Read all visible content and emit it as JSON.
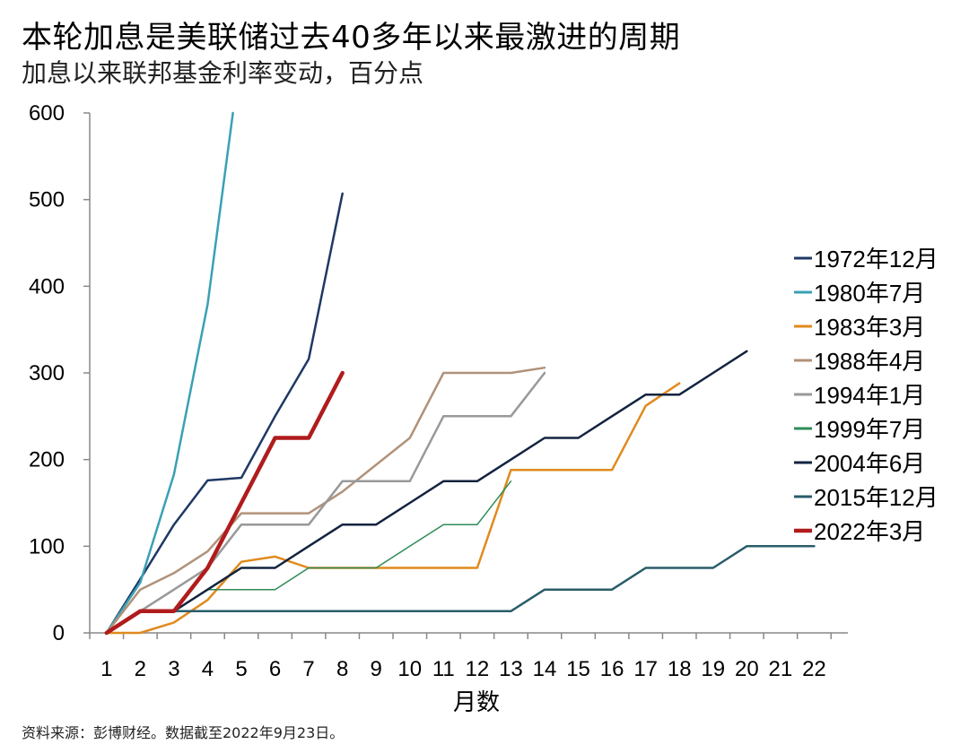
{
  "title": "本轮加息是美联储过去40多年以来最激进的周期",
  "subtitle": "加息以来联邦基金利率变动，百分点",
  "source": "资料来源：彭博财经。数据截至2022年9月23日。",
  "chart_data": {
    "type": "line",
    "xlabel": "月数",
    "ylabel": "",
    "x_ticks": [
      1,
      2,
      3,
      4,
      5,
      6,
      7,
      8,
      9,
      10,
      11,
      12,
      13,
      14,
      15,
      16,
      17,
      18,
      19,
      20,
      21,
      22
    ],
    "y_ticks": [
      0,
      100,
      200,
      300,
      400,
      500,
      600
    ],
    "xlim": [
      0.5,
      23
    ],
    "ylim": [
      0,
      600
    ],
    "grid": false,
    "legend_position": "right",
    "series": [
      {
        "name": "1972年12月",
        "color": "#1f3864",
        "width": 2.5,
        "x": [
          1,
          2,
          3,
          4,
          5,
          6,
          7,
          8
        ],
        "y": [
          0,
          62,
          125,
          176,
          179,
          250,
          316,
          507
        ]
      },
      {
        "name": "1980年7月",
        "color": "#3aa0b4",
        "width": 2.5,
        "x": [
          1,
          2,
          3,
          4,
          4.75
        ],
        "y": [
          0,
          58,
          183,
          379,
          600
        ]
      },
      {
        "name": "1983年3月",
        "color": "#e08a1e",
        "width": 2.5,
        "x": [
          1,
          2,
          3,
          4,
          5,
          6,
          7,
          8,
          9,
          10,
          11,
          12,
          13,
          14,
          15,
          16,
          17,
          18
        ],
        "y": [
          0,
          0,
          12,
          38,
          82,
          88,
          75,
          75,
          75,
          75,
          75,
          75,
          188,
          188,
          188,
          188,
          262,
          288
        ]
      },
      {
        "name": "1988年4月",
        "color": "#b0927a",
        "width": 2.5,
        "x": [
          1,
          2,
          3,
          4,
          5,
          6,
          7,
          8,
          9,
          10,
          11,
          12,
          13,
          14
        ],
        "y": [
          0,
          50,
          69,
          94,
          138,
          138,
          138,
          163,
          194,
          225,
          300,
          300,
          300,
          306
        ]
      },
      {
        "name": "1994年1月",
        "color": "#999999",
        "width": 2.5,
        "x": [
          1,
          2,
          3,
          4,
          5,
          6,
          7,
          8,
          9,
          10,
          11,
          12,
          13,
          14
        ],
        "y": [
          0,
          25,
          50,
          75,
          125,
          125,
          125,
          175,
          175,
          175,
          250,
          250,
          250,
          300
        ]
      },
      {
        "name": "1999年7月",
        "color": "#2e8b57",
        "width": 1.5,
        "x": [
          1,
          2,
          3,
          4,
          5,
          6,
          7,
          8,
          9,
          10,
          11,
          12,
          13
        ],
        "y": [
          0,
          25,
          25,
          50,
          50,
          50,
          75,
          75,
          75,
          100,
          125,
          125,
          175
        ]
      },
      {
        "name": "2004年6月",
        "color": "#13233f",
        "width": 2.5,
        "x": [
          1,
          2,
          3,
          4,
          5,
          6,
          7,
          8,
          9,
          10,
          11,
          12,
          13,
          14,
          15,
          16,
          17,
          18,
          19,
          20
        ],
        "y": [
          0,
          25,
          25,
          50,
          75,
          75,
          100,
          125,
          125,
          150,
          175,
          175,
          200,
          225,
          225,
          250,
          275,
          275,
          300,
          325
        ]
      },
      {
        "name": "2015年12月",
        "color": "#2a5d6a",
        "width": 2.5,
        "x": [
          1,
          2,
          3,
          4,
          5,
          6,
          7,
          8,
          9,
          10,
          11,
          12,
          13,
          14,
          15,
          16,
          17,
          18,
          19,
          20,
          21,
          22
        ],
        "y": [
          0,
          25,
          25,
          25,
          25,
          25,
          25,
          25,
          25,
          25,
          25,
          25,
          25,
          50,
          50,
          50,
          75,
          75,
          75,
          100,
          100,
          100
        ]
      },
      {
        "name": "2022年3月",
        "color": "#b01c1c",
        "width": 4.5,
        "x": [
          1,
          2,
          3,
          4,
          5,
          6,
          7,
          8
        ],
        "y": [
          0,
          25,
          25,
          75,
          150,
          225,
          225,
          300
        ]
      }
    ]
  }
}
